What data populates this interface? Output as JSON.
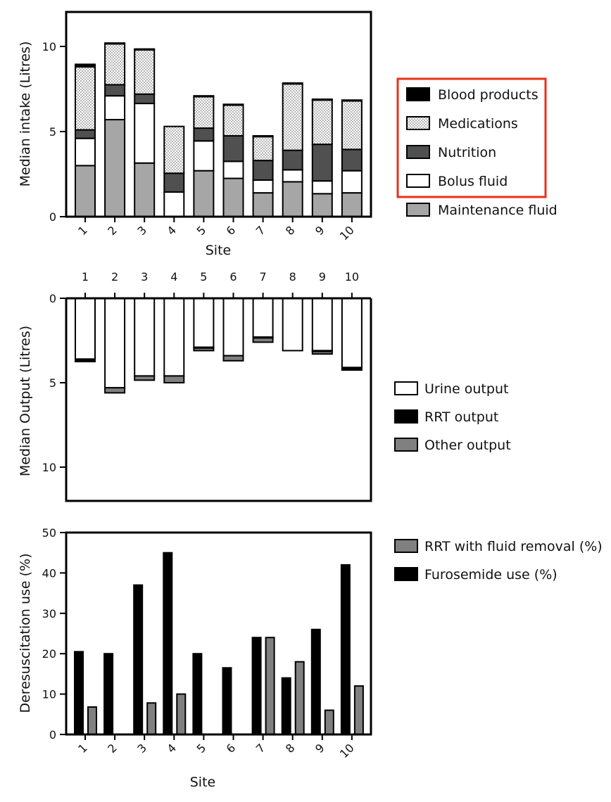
{
  "chart_data": [
    {
      "type": "bar",
      "stacked": true,
      "xlabel": "Site",
      "ylabel": "Median intake (Litres)",
      "ylim": [
        0,
        12
      ],
      "yticks": [
        0,
        5,
        10
      ],
      "categories": [
        "1",
        "2",
        "3",
        "4",
        "5",
        "6",
        "7",
        "8",
        "9",
        "10"
      ],
      "series": [
        {
          "name": "Maintenance fluid",
          "color": "#a6a6a6",
          "pattern": "solid",
          "values": [
            3.0,
            5.7,
            3.15,
            0.0,
            2.7,
            2.25,
            1.4,
            2.05,
            1.35,
            1.4
          ]
        },
        {
          "name": "Bolus fluid",
          "color": "#ffffff",
          "pattern": "solid",
          "values": [
            1.6,
            1.4,
            3.5,
            1.45,
            1.75,
            1.0,
            0.75,
            0.7,
            0.75,
            1.3
          ]
        },
        {
          "name": "Nutrition",
          "color": "#505050",
          "pattern": "solid",
          "values": [
            0.5,
            0.65,
            0.55,
            1.1,
            0.75,
            1.5,
            1.15,
            1.15,
            2.15,
            1.25
          ]
        },
        {
          "name": "Medications",
          "color": "#ffffff",
          "pattern": "dots",
          "values": [
            3.7,
            2.4,
            2.6,
            2.75,
            1.85,
            1.8,
            1.4,
            3.9,
            2.6,
            2.85
          ]
        },
        {
          "name": "Blood products",
          "color": "#000000",
          "pattern": "solid",
          "values": [
            0.15,
            0.05,
            0.05,
            0.0,
            0.05,
            0.05,
            0.05,
            0.05,
            0.05,
            0.05
          ]
        }
      ],
      "legend": {
        "position": "right",
        "highlighted_entries": [
          "Blood products",
          "Medications",
          "Nutrition",
          "Bolus fluid"
        ],
        "highlight_color": "#e8311a"
      }
    },
    {
      "type": "bar",
      "stacked": true,
      "inverted_y": true,
      "x_axis_position": "top",
      "ylabel": "Median Output (Litres)",
      "ylim": [
        0,
        12
      ],
      "yticks": [
        0,
        5,
        10
      ],
      "categories": [
        "1",
        "2",
        "3",
        "4",
        "5",
        "6",
        "7",
        "8",
        "9",
        "10"
      ],
      "series": [
        {
          "name": "Urine output",
          "color": "#ffffff",
          "values": [
            3.6,
            5.3,
            4.6,
            4.6,
            2.9,
            3.4,
            2.3,
            3.1,
            3.1,
            4.1
          ]
        },
        {
          "name": "RRT output",
          "color": "#000000",
          "values": [
            0.15,
            0.0,
            0.0,
            0.0,
            0.05,
            0.0,
            0.05,
            0.0,
            0.05,
            0.1
          ]
        },
        {
          "name": "Other output",
          "color": "#808080",
          "values": [
            0.0,
            0.3,
            0.25,
            0.4,
            0.15,
            0.3,
            0.25,
            0.0,
            0.15,
            0.05
          ]
        }
      ],
      "legend": {
        "position": "right"
      }
    },
    {
      "type": "bar",
      "grouped": true,
      "xlabel": "Site",
      "ylabel": "Deresuscitation use (%)",
      "ylim": [
        0,
        50
      ],
      "yticks": [
        0,
        10,
        20,
        30,
        40,
        50
      ],
      "categories": [
        "1",
        "2",
        "3",
        "4",
        "5",
        "6",
        "7",
        "8",
        "9",
        "10"
      ],
      "series": [
        {
          "name": "Furosemide use (%)",
          "color": "#000000",
          "values": [
            20.5,
            20,
            37,
            45,
            20,
            16.5,
            24,
            14,
            26,
            42
          ]
        },
        {
          "name": "RRT with fluid removal (%)",
          "color": "#808080",
          "values": [
            6.8,
            0,
            7.8,
            10,
            0,
            0,
            24,
            18,
            6,
            12
          ]
        }
      ],
      "legend": {
        "position": "right"
      }
    }
  ]
}
